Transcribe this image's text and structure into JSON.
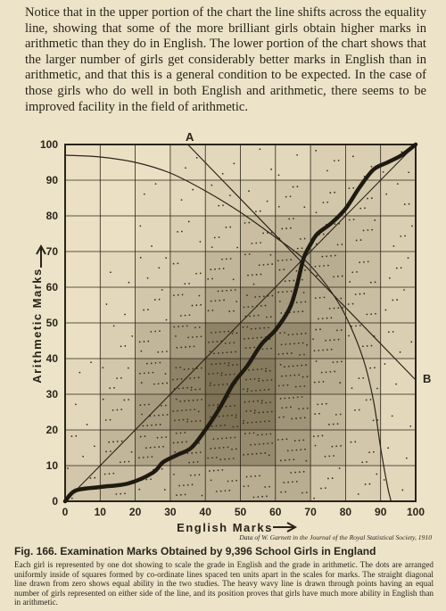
{
  "intro_text": "Notice that in the upper portion of the chart the line shifts across the equality line, showing that some of the more brilliant girls obtain higher marks in arithmetic than they do in English. The lower portion of the chart shows that the larger number of girls get considerably better marks in English than in arithmetic, and that this is a general condition to be expected. In the case of those girls who do well in both English and arithmetic, there seems to be improved facility in the field of arithmetic.",
  "chart_data": {
    "type": "scatter",
    "xlabel": "English Marks",
    "ylabel": "Arithmetic Marks",
    "xlim": [
      0,
      100
    ],
    "ylim": [
      0,
      100
    ],
    "x_ticks": [
      "0",
      "10",
      "20",
      "30",
      "40",
      "50",
      "60",
      "70",
      "80",
      "90",
      "100"
    ],
    "y_ticks": [
      "0",
      "10",
      "20",
      "30",
      "40",
      "50",
      "60",
      "70",
      "80",
      "90",
      "100"
    ],
    "grid": true,
    "cell_density": [
      [
        3,
        4,
        4,
        6,
        6,
        6,
        6,
        3,
        2,
        1
      ],
      [
        2,
        5,
        7,
        9,
        10,
        10,
        8,
        5,
        3,
        1
      ],
      [
        1,
        4,
        8,
        11,
        13,
        12,
        9,
        5,
        3,
        1
      ],
      [
        1,
        3,
        7,
        11,
        13,
        12,
        10,
        6,
        3,
        1
      ],
      [
        0,
        2,
        5,
        8,
        11,
        11,
        10,
        7,
        4,
        2
      ],
      [
        0,
        1,
        3,
        5,
        7,
        9,
        8,
        6,
        4,
        2
      ],
      [
        0,
        1,
        2,
        3,
        5,
        6,
        7,
        6,
        4,
        2
      ],
      [
        0,
        0,
        1,
        2,
        3,
        4,
        5,
        5,
        4,
        2
      ],
      [
        0,
        0,
        1,
        1,
        2,
        2,
        3,
        3,
        3,
        2
      ],
      [
        0,
        0,
        0,
        1,
        1,
        1,
        1,
        2,
        2,
        2
      ]
    ],
    "equality_line": {
      "x": [
        0,
        100
      ],
      "y": [
        0,
        100
      ]
    },
    "median_curve": {
      "x": [
        0,
        3,
        10,
        18,
        25,
        28,
        32,
        36,
        40,
        44,
        48,
        52,
        56,
        60,
        64,
        66,
        68,
        70,
        72,
        76,
        80,
        84,
        88,
        92,
        96,
        100
      ],
      "y": [
        0,
        3,
        4,
        5,
        8,
        11,
        13,
        15,
        20,
        26,
        33,
        38,
        44,
        48,
        54,
        60,
        68,
        72,
        75,
        78,
        82,
        88,
        93,
        95,
        97,
        100
      ]
    },
    "curve_A": {
      "x": [
        0,
        10,
        20,
        30,
        40,
        50,
        60,
        68,
        75,
        80,
        85,
        88,
        90,
        92,
        93
      ],
      "y": [
        97,
        96.5,
        95,
        92,
        87,
        81,
        74,
        68,
        60,
        52,
        40,
        28,
        15,
        4,
        0
      ]
    },
    "curve_B": {
      "x": [
        35,
        100
      ],
      "y": [
        100,
        34
      ]
    },
    "annotations": [
      "A",
      "B"
    ]
  },
  "axis_ticks_y": [
    "100",
    "90",
    "80",
    "70",
    "60",
    "50",
    "40",
    "30",
    "20",
    "10",
    "0"
  ],
  "y_axis_title": "Arithmetic Marks",
  "x_axis_title": "English Marks",
  "label_A": "A",
  "label_B": "B",
  "source_note": "Data of W. Garnett in the Journal of the Royal Statistical Society, 1910",
  "figure_title": "Fig. 166. Examination Marks Obtained by 9,396 School Girls in England",
  "caption": "Each girl is represented by one dot showing to scale the grade in English and the grade in arithmetic. The dots are arranged uniformly inside of squares formed by co-ordinate lines spaced ten units apart in the scales for marks. The straight diagonal line drawn from zero shows equal ability in the two studies. The heavy wavy line is drawn through points having an equal number of girls represented on either side of the line, and its position proves that girls have much more ability in English than in arithmetic."
}
